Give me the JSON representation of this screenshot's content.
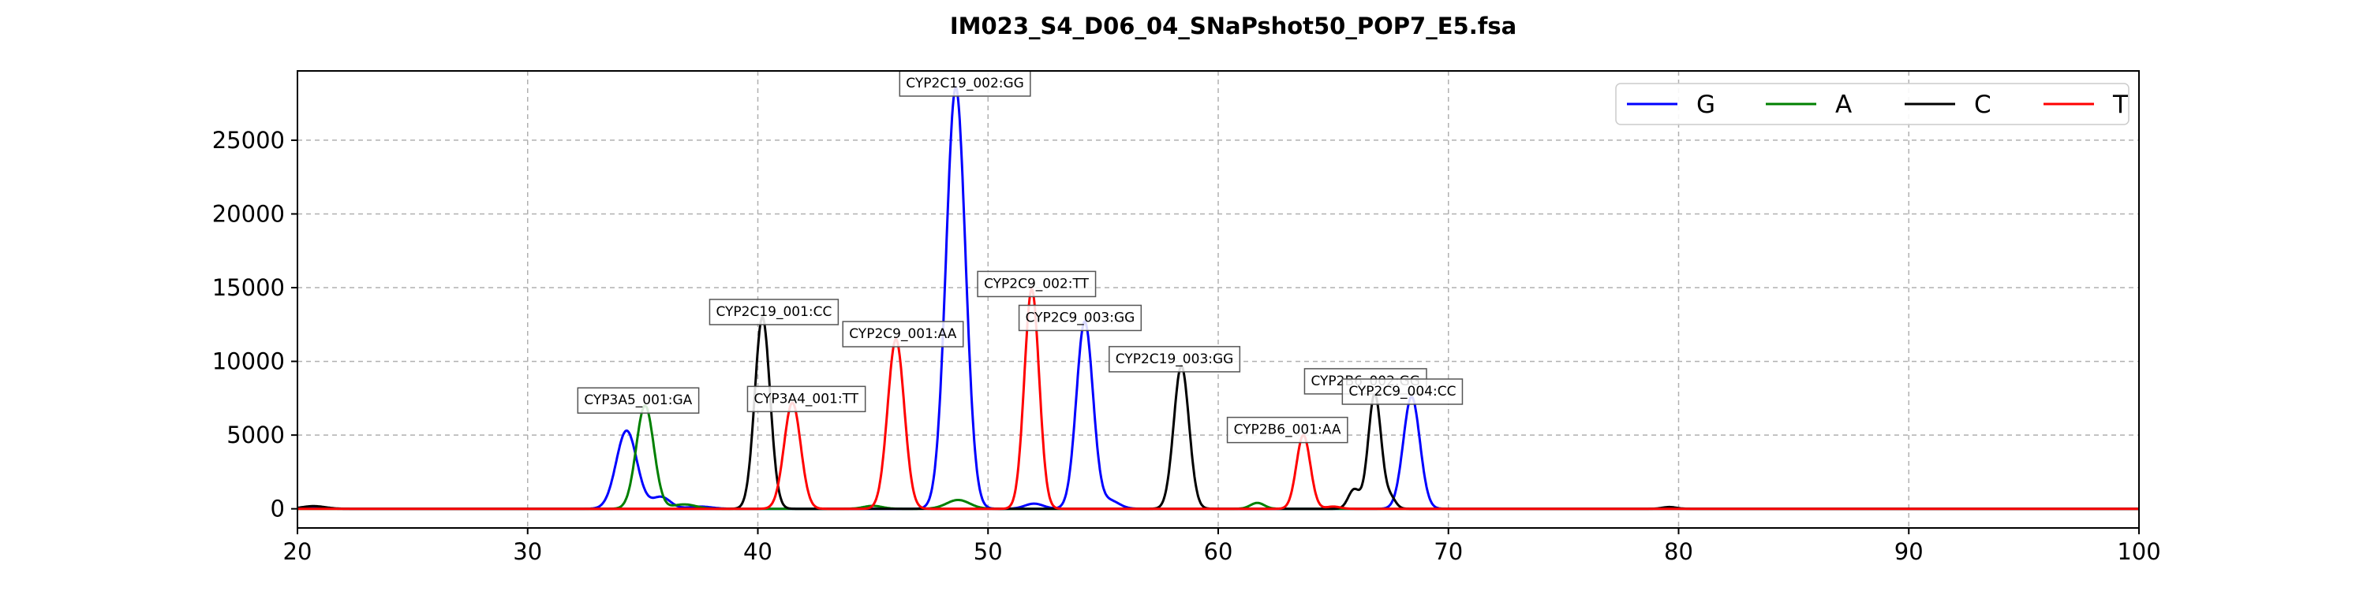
{
  "chart_data": {
    "type": "line",
    "title": "IM023_S4_D06_04_SNaPshot50_POP7_E5.fsa",
    "xlabel": "",
    "ylabel": "",
    "xlim": [
      20,
      100
    ],
    "ylim": [
      -1300,
      29700
    ],
    "x_ticks": [
      20,
      30,
      40,
      50,
      60,
      70,
      80,
      90,
      100
    ],
    "y_ticks": [
      0,
      5000,
      10000,
      15000,
      20000,
      25000
    ],
    "grid": true,
    "legend_position": "top-right",
    "series": [
      {
        "name": "G",
        "color": "#0000ff",
        "peaks": [
          {
            "x": 34.3,
            "y": 5300,
            "w": 0.45
          },
          {
            "x": 35.8,
            "y": 800,
            "w": 0.4
          },
          {
            "x": 37.5,
            "y": 150,
            "w": 0.5
          },
          {
            "x": 48.6,
            "y": 28600,
            "w": 0.42
          },
          {
            "x": 52.0,
            "y": 350,
            "w": 0.4
          },
          {
            "x": 54.2,
            "y": 12700,
            "w": 0.36
          },
          {
            "x": 55.3,
            "y": 550,
            "w": 0.4
          },
          {
            "x": 68.4,
            "y": 7600,
            "w": 0.36
          },
          {
            "x": 20.8,
            "y": 100,
            "w": 0.4
          }
        ]
      },
      {
        "name": "A",
        "color": "#008000",
        "peaks": [
          {
            "x": 35.1,
            "y": 7000,
            "w": 0.38
          },
          {
            "x": 36.8,
            "y": 300,
            "w": 0.5
          },
          {
            "x": 45.0,
            "y": 200,
            "w": 0.4
          },
          {
            "x": 48.7,
            "y": 600,
            "w": 0.5
          },
          {
            "x": 61.7,
            "y": 400,
            "w": 0.3
          }
        ]
      },
      {
        "name": "C",
        "color": "#000000",
        "peaks": [
          {
            "x": 20.7,
            "y": 180,
            "w": 0.5
          },
          {
            "x": 40.2,
            "y": 13000,
            "w": 0.33
          },
          {
            "x": 58.4,
            "y": 9700,
            "w": 0.33
          },
          {
            "x": 65.9,
            "y": 1300,
            "w": 0.25
          },
          {
            "x": 66.8,
            "y": 7800,
            "w": 0.28
          },
          {
            "x": 67.5,
            "y": 700,
            "w": 0.22
          },
          {
            "x": 79.6,
            "y": 120,
            "w": 0.3
          }
        ]
      },
      {
        "name": "T",
        "color": "#ff0000",
        "peaks": [
          {
            "x": 41.5,
            "y": 7200,
            "w": 0.36
          },
          {
            "x": 46.0,
            "y": 11500,
            "w": 0.36
          },
          {
            "x": 51.9,
            "y": 14900,
            "w": 0.32
          },
          {
            "x": 63.7,
            "y": 5000,
            "w": 0.3
          },
          {
            "x": 65.0,
            "y": 150,
            "w": 0.3
          }
        ]
      }
    ],
    "annotations": [
      {
        "text": "CYP3A5_001:GA",
        "x": 34.8,
        "y": 7400
      },
      {
        "text": "CYP2C19_001:CC",
        "x": 40.7,
        "y": 13400
      },
      {
        "text": "CYP3A4_001:TT",
        "x": 42.1,
        "y": 7500
      },
      {
        "text": "CYP2C9_001:AA",
        "x": 46.3,
        "y": 11900
      },
      {
        "text": "CYP2C19_002:GG",
        "x": 49.0,
        "y": 28900
      },
      {
        "text": "CYP2C9_002:TT",
        "x": 52.1,
        "y": 15300
      },
      {
        "text": "CYP2C9_003:GG",
        "x": 54.0,
        "y": 13000
      },
      {
        "text": "CYP2C19_003:GG",
        "x": 58.1,
        "y": 10200
      },
      {
        "text": "CYP2B6_001:AA",
        "x": 63.0,
        "y": 5400
      },
      {
        "text": "CYP2B6_002:GG",
        "x": 66.4,
        "y": 8700
      },
      {
        "text": "CYP2C9_004:CC",
        "x": 68.0,
        "y": 8000
      }
    ]
  }
}
